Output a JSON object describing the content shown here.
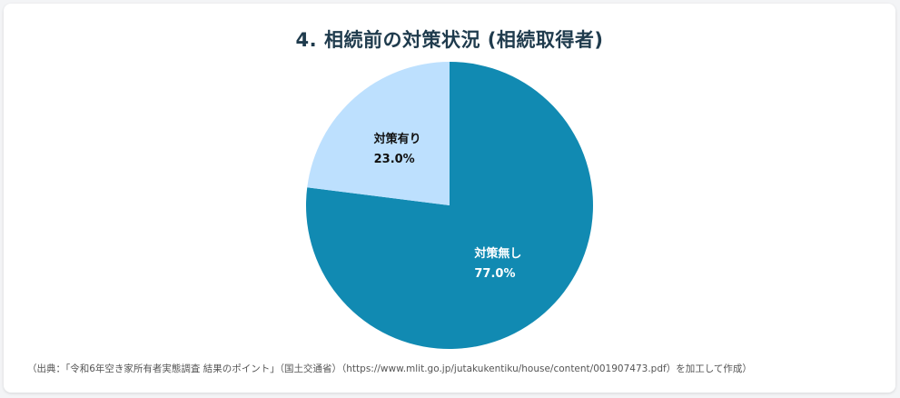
{
  "chart_data": {
    "type": "pie",
    "title": "4. 相続前の対策状況 (相続取得者)",
    "slices": [
      {
        "label": "対策無し",
        "value": 77.0,
        "value_label": "77.0%",
        "color": "#118ab2",
        "text_color": "#ffffff"
      },
      {
        "label": "対策有り",
        "value": 23.0,
        "value_label": "23.0%",
        "color": "#bde0fe",
        "text_color": "#111111"
      }
    ],
    "start": "top",
    "direction": "clockwise",
    "legend": "none"
  },
  "footer": {
    "source": "（出典：「令和6年空き家所有者実態調査 結果のポイント」（国土交通省）（https://www.mlit.go.jp/jutakukentiku/house/content/001907473.pdf）を加工して作成）"
  }
}
